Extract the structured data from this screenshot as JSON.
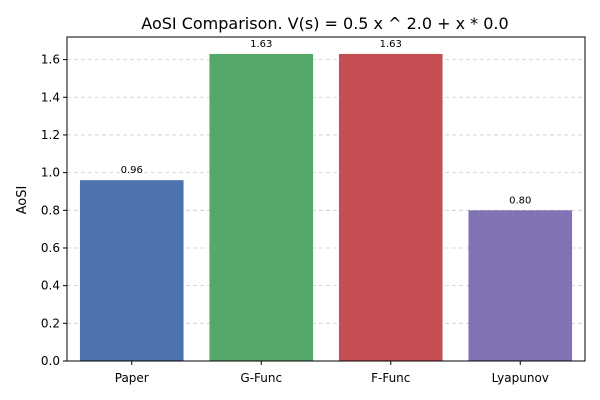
{
  "chart_data": {
    "type": "bar",
    "title": "AoSI Comparison. V(s) = 0.5 x ^ 2.0 + x * 0.0",
    "xlabel": "",
    "ylabel": "AoSI",
    "categories": [
      "Paper",
      "G-Func",
      "F-Func",
      "Lyapunov"
    ],
    "values": [
      0.96,
      1.63,
      1.63,
      0.8
    ],
    "data_labels": [
      "0.96",
      "1.63",
      "1.63",
      "0.80"
    ],
    "colors": [
      "#4c72b0",
      "#55a868",
      "#c44e52",
      "#8172b3"
    ],
    "ylim": [
      0,
      1.72
    ],
    "yticks": [
      0.0,
      0.2,
      0.4,
      0.6,
      0.8,
      1.0,
      1.2,
      1.4,
      1.6
    ],
    "ytick_labels": [
      "0.0",
      "0.2",
      "0.4",
      "0.6",
      "0.8",
      "1.0",
      "1.2",
      "1.4",
      "1.6"
    ],
    "grid": true
  }
}
